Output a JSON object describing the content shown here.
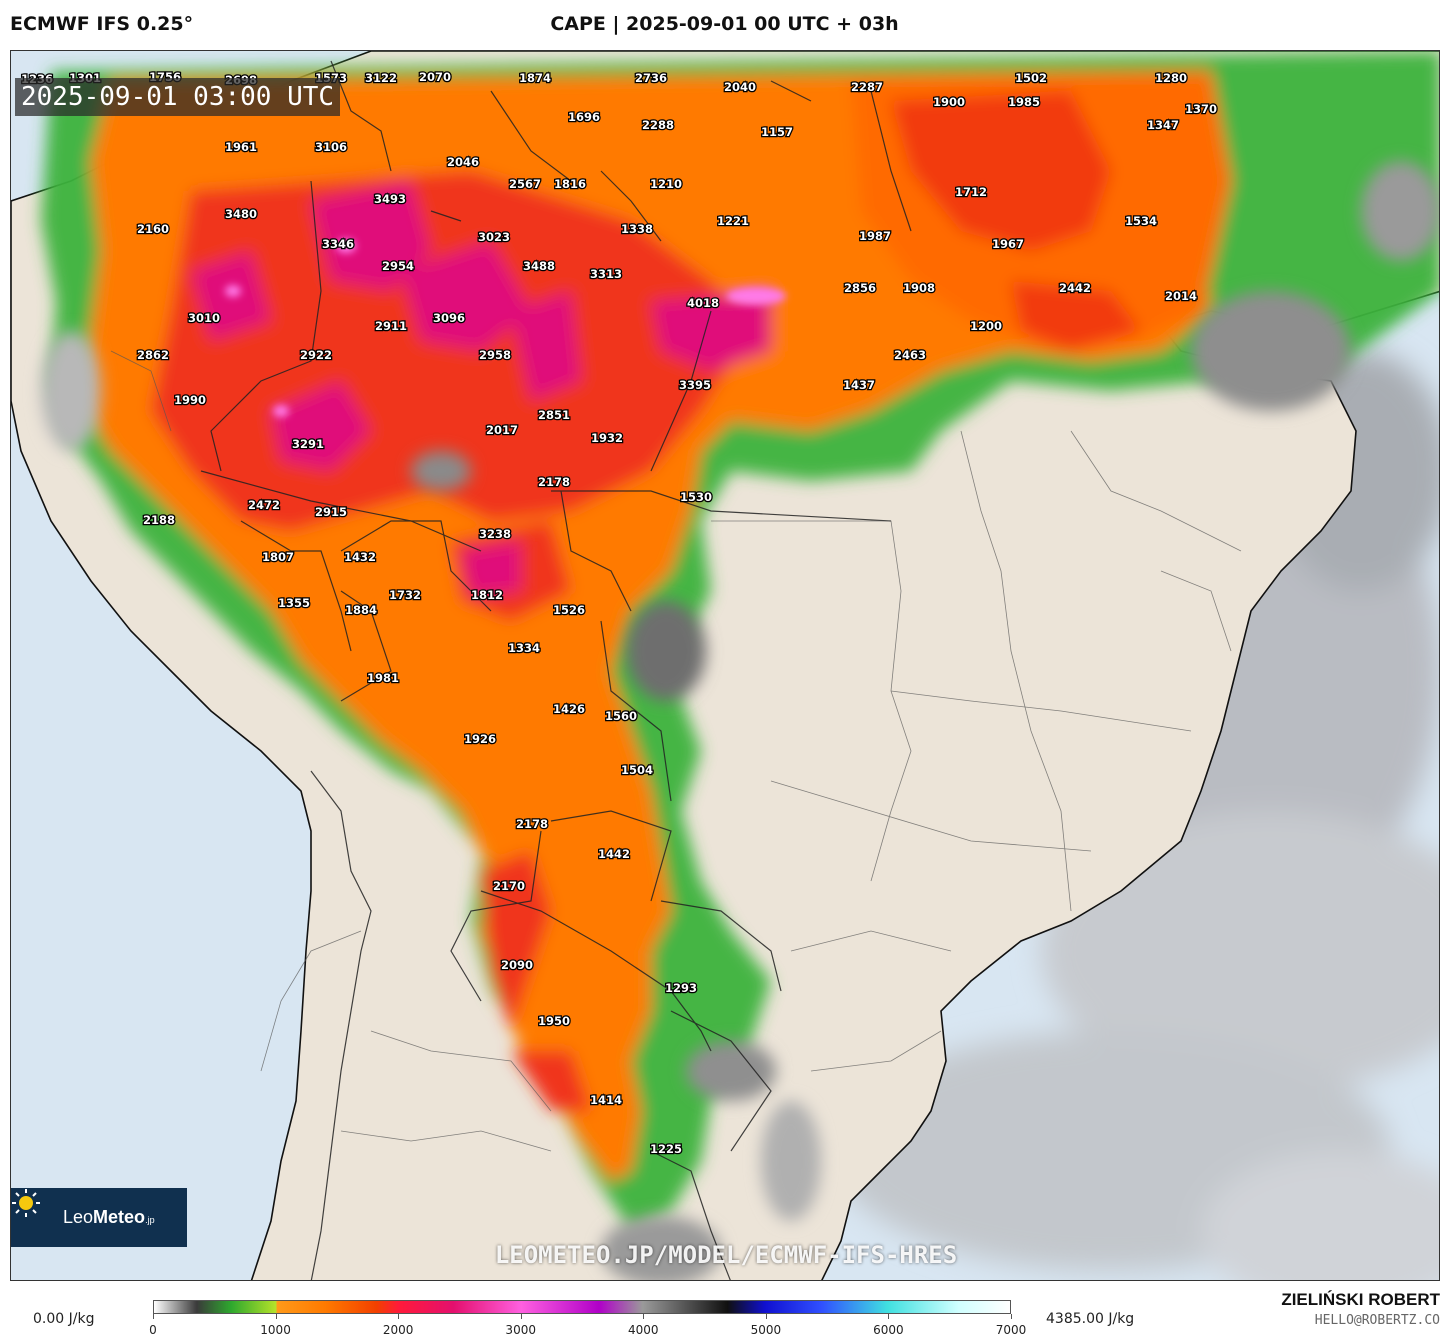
{
  "header": {
    "model": "ECMWF IFS 0.25°",
    "title": "CAPE | 2025-09-01 00 UTC + 03h"
  },
  "map": {
    "valid_time": "2025-09-01 03:00 UTC",
    "watermark": "LEOMETEO.JP/MODEL/ECMWF-IFS-HRES",
    "logo": {
      "name_light": "Leo",
      "name_bold": "Meteo",
      "suffix": ".jp"
    },
    "values": [
      "1236",
      "1301",
      "1756",
      "2698",
      "1573",
      "3122",
      "2070",
      "1874",
      "2736",
      "2040",
      "2287",
      "1502",
      "1280",
      "1900",
      "1985",
      "1370",
      "1696",
      "1157",
      "2288",
      "1347",
      "1961",
      "3106",
      "2046",
      "2567",
      "1816",
      "1210",
      "3493",
      "1712",
      "3480",
      "2160",
      "1221",
      "1338",
      "1534",
      "3346",
      "3023",
      "1987",
      "1967",
      "2954",
      "3488",
      "3313",
      "4018",
      "2856",
      "1908",
      "2442",
      "2014",
      "3010",
      "2911",
      "3096",
      "1200",
      "2862",
      "2922",
      "2958",
      "2463",
      "3395",
      "1437",
      "1990",
      "2851",
      "2017",
      "1932",
      "3291",
      "2178",
      "1530",
      "2472",
      "2915",
      "2188",
      "3238",
      "1807",
      "1432",
      "1732",
      "1812",
      "1355",
      "1884",
      "1526",
      "1334",
      "1981",
      "1426",
      "1560",
      "1926",
      "1504",
      "2178",
      "1442",
      "2170",
      "2090",
      "1293",
      "1950",
      "1414",
      "1225"
    ]
  },
  "legend": {
    "min_label": "0.00 J/kg",
    "max_label": "4385.00 J/kg",
    "ticks": [
      "0",
      "1000",
      "2000",
      "3000",
      "4000",
      "5000",
      "6000",
      "7000"
    ],
    "range": [
      0,
      7000
    ]
  },
  "credits": {
    "author": "ZIELIŃSKI ROBERT",
    "email": "HELLO@ROBERTZ.CO"
  },
  "colors": {
    "land": "#ece4d8",
    "ocean": "#d8e6f2",
    "cape_low": "#2ea82e",
    "cape_mid": "#ff7a00",
    "cape_high": "#ff1a3a",
    "cape_peak": "#e4106e"
  }
}
